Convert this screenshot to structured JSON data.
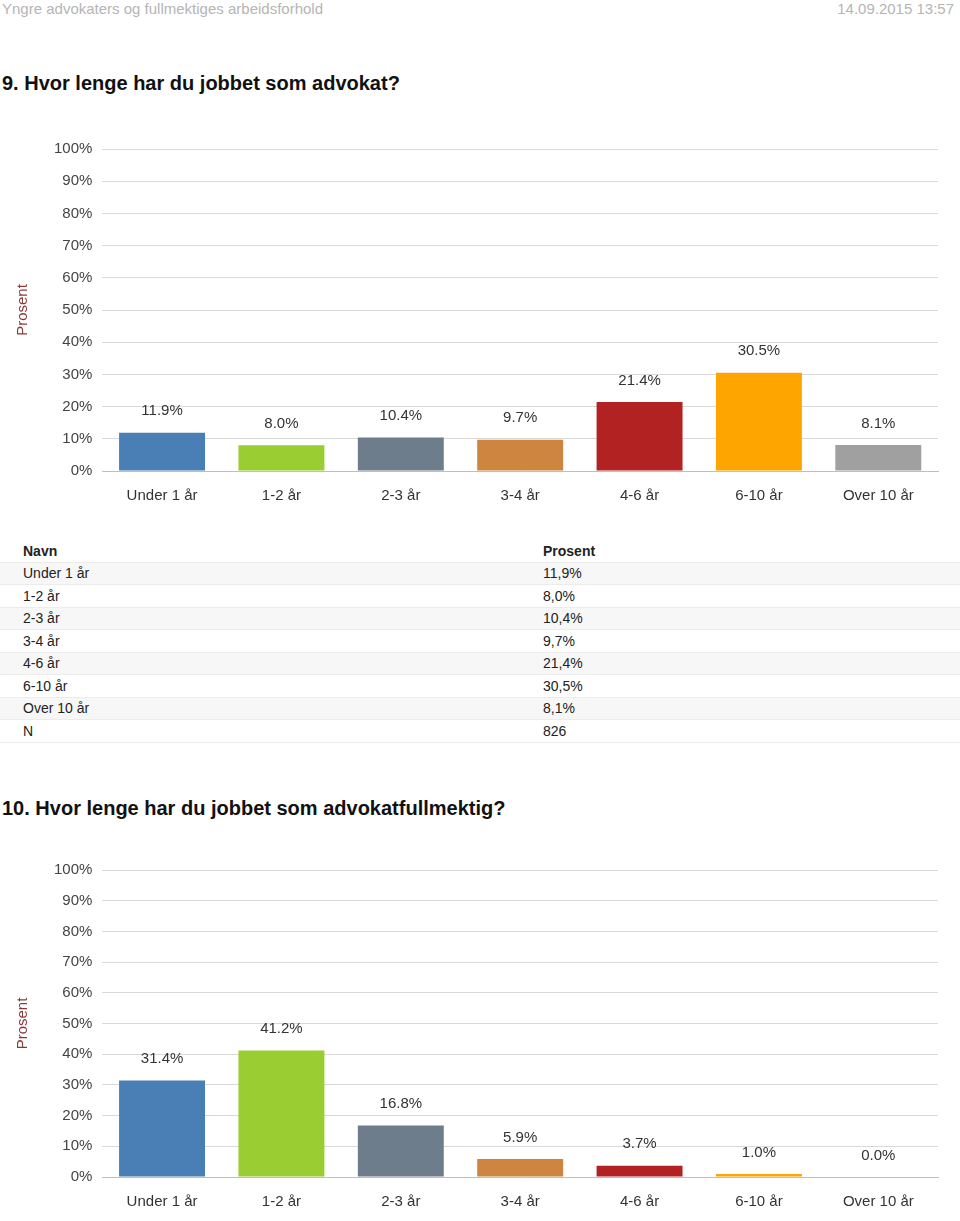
{
  "header": {
    "title": "Yngre advokaters og fullmektiges arbeidsforhold",
    "timestamp": "14.09.2015 13:57"
  },
  "chart_data": [
    {
      "type": "bar",
      "title": "9. Hvor lenge har du jobbet som advokat?",
      "y_label": "Prosent",
      "categories": [
        "Under 1 år",
        "1-2 år",
        "2-3 år",
        "3-4 år",
        "4-6 år",
        "6-10 år",
        "Over 10 år"
      ],
      "values": [
        11.9,
        8.0,
        10.4,
        9.7,
        21.4,
        30.5,
        8.1
      ],
      "value_labels": [
        "11.9%",
        "8.0%",
        "10.4%",
        "9.7%",
        "21.4%",
        "30.5%",
        "8.1%"
      ],
      "colors": [
        "#4a7fb5",
        "#9acd32",
        "#6e7d8c",
        "#cd853f",
        "#b22222",
        "#ffa500",
        "#a0a0a0"
      ],
      "ylim": [
        0,
        100
      ],
      "yticks": [
        {
          "value": 0,
          "label": "0%"
        },
        {
          "value": 10,
          "label": "10%"
        },
        {
          "value": 20,
          "label": "20%"
        },
        {
          "value": 30,
          "label": "30%"
        },
        {
          "value": 40,
          "label": "40%"
        },
        {
          "value": 50,
          "label": "50%"
        },
        {
          "value": 60,
          "label": "60%"
        },
        {
          "value": 70,
          "label": "70%"
        },
        {
          "value": 80,
          "label": "80%"
        },
        {
          "value": 90,
          "label": "90%"
        },
        {
          "value": 100,
          "label": "100%"
        }
      ],
      "grid": true,
      "data_labels": true
    },
    {
      "type": "bar",
      "title": "10. Hvor lenge har du jobbet som advokatfullmektig?",
      "y_label": "Prosent",
      "categories": [
        "Under 1 år",
        "1-2 år",
        "2-3 år",
        "3-4 år",
        "4-6 år",
        "6-10 år",
        "Over 10 år"
      ],
      "values": [
        31.4,
        41.2,
        16.8,
        5.9,
        3.7,
        1.0,
        0.0
      ],
      "value_labels": [
        "31.4%",
        "41.2%",
        "16.8%",
        "5.9%",
        "3.7%",
        "1.0%",
        "0.0%"
      ],
      "colors": [
        "#4a7fb5",
        "#9acd32",
        "#6e7d8c",
        "#cd853f",
        "#b22222",
        "#ffa500",
        "#a0a0a0"
      ],
      "ylim": [
        0,
        100
      ],
      "yticks": [
        {
          "value": 0,
          "label": "0%"
        },
        {
          "value": 10,
          "label": "10%"
        },
        {
          "value": 20,
          "label": "20%"
        },
        {
          "value": 30,
          "label": "30%"
        },
        {
          "value": 40,
          "label": "40%"
        },
        {
          "value": 50,
          "label": "50%"
        },
        {
          "value": 60,
          "label": "60%"
        },
        {
          "value": 70,
          "label": "70%"
        },
        {
          "value": 80,
          "label": "80%"
        },
        {
          "value": 90,
          "label": "90%"
        },
        {
          "value": 100,
          "label": "100%"
        }
      ],
      "grid": true,
      "data_labels": true
    }
  ],
  "table": {
    "rows": [
      [
        "Navn",
        "Prosent"
      ],
      [
        "Under 1 år",
        "11,9%"
      ],
      [
        "1-2 år",
        "8,0%"
      ],
      [
        "2-3 år",
        "10,4%"
      ],
      [
        "3-4 år",
        "9,7%"
      ],
      [
        "4-6 år",
        "21,4%"
      ],
      [
        "6-10 år",
        "30,5%"
      ],
      [
        "Over 10 år",
        "8,1%"
      ],
      [
        "N",
        "826"
      ]
    ]
  }
}
